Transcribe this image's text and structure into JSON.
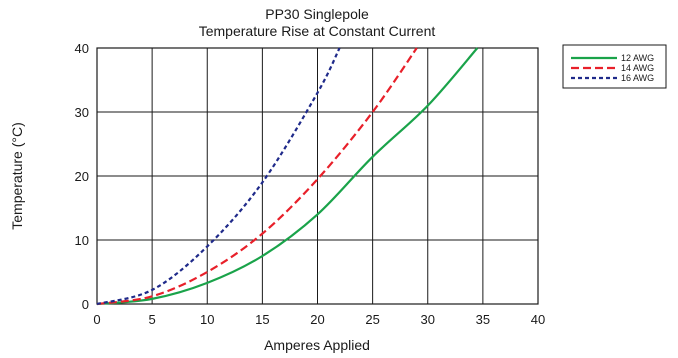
{
  "chart_data": {
    "type": "line",
    "title": "PP30 Singlepole",
    "subtitle": "Temperature Rise at Constant Current",
    "xlabel": "Amperes Applied",
    "ylabel": "Temperature (°C)",
    "xlim": [
      0,
      40
    ],
    "ylim": [
      0,
      40
    ],
    "xticks": [
      "0",
      "5",
      "10",
      "15",
      "20",
      "25",
      "30",
      "35",
      "40"
    ],
    "yticks": [
      "0",
      "10",
      "20",
      "30",
      "40"
    ],
    "grid": true,
    "legend_position": "top-right outside",
    "series": [
      {
        "name": "12 AWG",
        "color": "#1aa34a",
        "dash": "solid",
        "x": [
          0,
          5,
          10,
          15,
          20,
          25,
          30,
          34.5
        ],
        "y": [
          0,
          0.8,
          3.3,
          7.5,
          14,
          23,
          31,
          40
        ]
      },
      {
        "name": "14 AWG",
        "color": "#e8202a",
        "dash": "dashed",
        "x": [
          0,
          5,
          10,
          15,
          20,
          25,
          29
        ],
        "y": [
          0,
          1.2,
          5,
          11,
          19.5,
          30,
          40
        ]
      },
      {
        "name": "16 AWG",
        "color": "#1f2a8a",
        "dash": "dotted",
        "x": [
          0,
          5,
          10,
          15,
          20,
          22
        ],
        "y": [
          0,
          2.2,
          9,
          19,
          33,
          40
        ]
      }
    ]
  }
}
